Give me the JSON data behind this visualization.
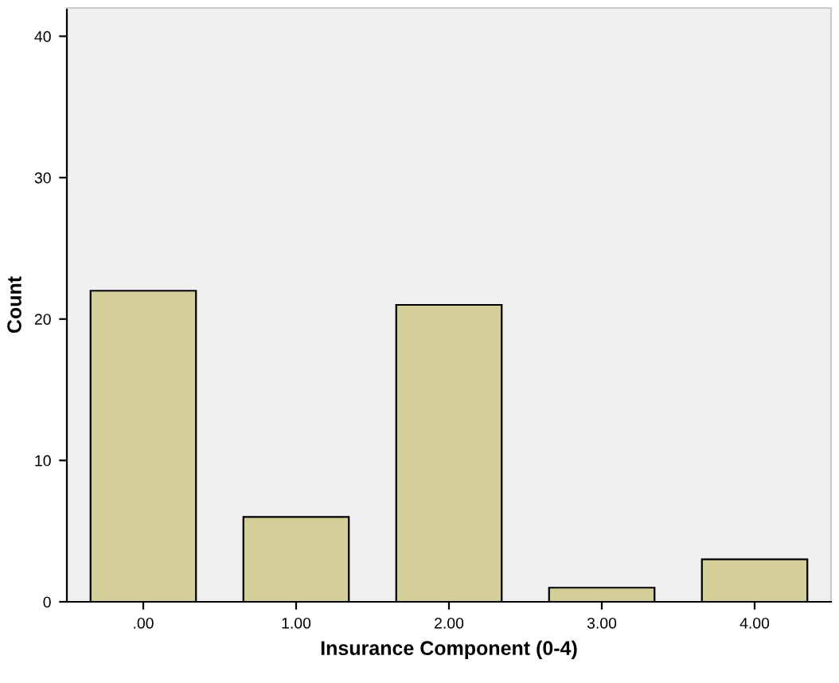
{
  "chart_data": {
    "type": "bar",
    "xlabel": "Insurance Component (0-4)",
    "ylabel": "Count",
    "categories": [
      ".00",
      "1.00",
      "2.00",
      "3.00",
      "4.00"
    ],
    "values": [
      22,
      6,
      21,
      1,
      3
    ],
    "color": "#d3ce97",
    "ylim": [
      0,
      42
    ],
    "yticks": [
      0,
      10,
      20,
      30,
      40
    ],
    "grid": false,
    "legend": false
  }
}
